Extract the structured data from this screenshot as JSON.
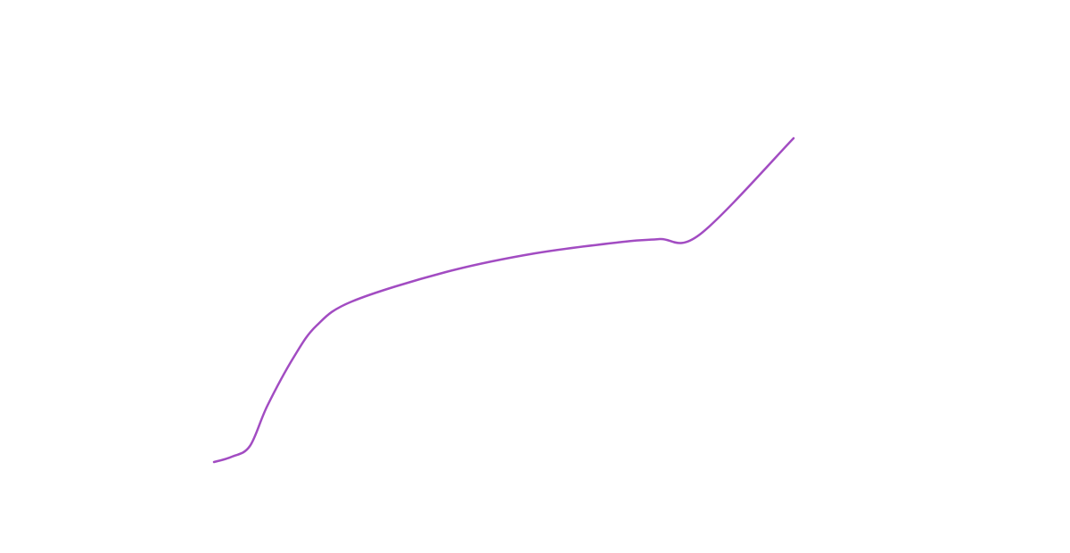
{
  "chart_data": {
    "type": "line",
    "x": [
      0,
      3.1,
      6.2,
      9.2,
      13.8,
      17.7,
      23.8,
      40,
      55.4,
      70.8,
      76.9,
      83.8,
      100
    ],
    "series": [
      {
        "color": "#a24cc2",
        "values": [
          8.4,
          9.6,
          12,
          21,
          32,
          39,
          44.4,
          51,
          55.2,
          57.8,
          58.4,
          59.4,
          81
        ]
      }
    ],
    "xlim": [
      0,
      100
    ],
    "ylim": [
      0,
      100
    ]
  }
}
